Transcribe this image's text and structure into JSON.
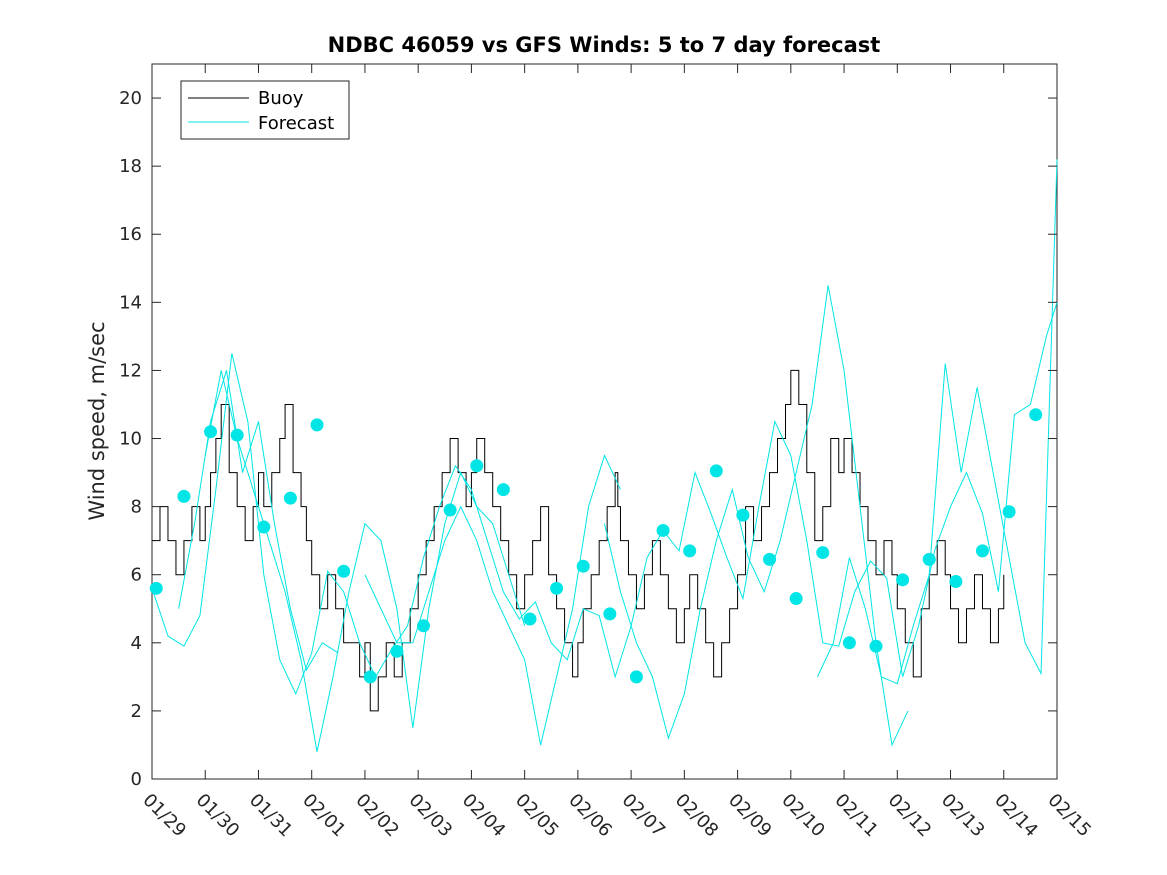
{
  "chart_data": {
    "type": "line",
    "title": "NDBC 46059 vs GFS Winds: 5 to 7 day forecast",
    "xlabel": "",
    "ylabel": "Wind speed, m/sec",
    "xlim": [
      0,
      17
    ],
    "ylim": [
      0,
      21
    ],
    "yticks": [
      0,
      2,
      4,
      6,
      8,
      10,
      12,
      14,
      16,
      18,
      20
    ],
    "xticks": [
      0,
      1,
      2,
      3,
      4,
      5,
      6,
      7,
      8,
      9,
      10,
      11,
      12,
      13,
      14,
      15,
      16,
      17
    ],
    "xtick_labels": [
      "01/29",
      "01/30",
      "01/31",
      "02/01",
      "02/02",
      "02/03",
      "02/04",
      "02/05",
      "02/06",
      "02/07",
      "02/08",
      "02/09",
      "02/10",
      "02/11",
      "02/12",
      "02/13",
      "02/14",
      "02/15"
    ],
    "x_unit": "days since 01/29",
    "legend": {
      "placement": "top-left",
      "entries": [
        {
          "name": "Buoy",
          "color": "#000000"
        },
        {
          "name": "Forecast",
          "color": "#00e5e5"
        }
      ]
    },
    "colors": {
      "buoy": "#000000",
      "forecast": "#00e5e5",
      "marker": "#00e5e5"
    },
    "series": [
      {
        "name": "Buoy",
        "style": "step",
        "x": [
          0,
          0.15,
          0.3,
          0.45,
          0.6,
          0.75,
          0.9,
          1.0,
          1.1,
          1.2,
          1.3,
          1.45,
          1.6,
          1.75,
          1.9,
          2.0,
          2.1,
          2.25,
          2.4,
          2.5,
          2.65,
          2.8,
          2.9,
          3.0,
          3.15,
          3.3,
          3.45,
          3.6,
          3.75,
          3.9,
          4.0,
          4.1,
          4.25,
          4.4,
          4.55,
          4.7,
          4.85,
          5.0,
          5.15,
          5.3,
          5.45,
          5.6,
          5.75,
          5.9,
          6.0,
          6.1,
          6.25,
          6.4,
          6.55,
          6.7,
          6.85,
          7.0,
          7.15,
          7.3,
          7.45,
          7.6,
          7.75,
          7.9,
          8.0,
          8.1,
          8.25,
          8.4,
          8.55,
          8.7,
          8.75,
          8.8,
          8.95,
          9.1,
          9.25,
          9.4,
          9.55,
          9.7,
          9.85,
          10.0,
          10.1,
          10.25,
          10.4,
          10.55,
          10.7,
          10.85,
          11.0,
          11.15,
          11.3,
          11.45,
          11.6,
          11.75,
          11.9,
          12.0,
          12.15,
          12.3,
          12.45,
          12.6,
          12.75,
          12.9,
          13.0,
          13.15,
          13.3,
          13.45,
          13.6,
          13.75,
          13.9,
          14.0,
          14.15,
          14.3,
          14.45,
          14.6,
          14.75,
          14.9,
          15.0,
          15.15,
          15.3,
          15.45,
          15.6,
          15.75,
          15.9,
          16.0
        ],
        "values": [
          7,
          8,
          7,
          6,
          7,
          8,
          7,
          8,
          9,
          10,
          11,
          9,
          8,
          7,
          8,
          9,
          8,
          9,
          10,
          11,
          9,
          8,
          7,
          6,
          5,
          6,
          5,
          4,
          4,
          3,
          4,
          2,
          3,
          4,
          3,
          4,
          5,
          6,
          7,
          8,
          9,
          10,
          9,
          8,
          9,
          10,
          9,
          8,
          7,
          6,
          5,
          6,
          7,
          8,
          6,
          5,
          4,
          3,
          4,
          5,
          6,
          7,
          8,
          9,
          8,
          7,
          6,
          5,
          6,
          7,
          6,
          5,
          4,
          5,
          6,
          5,
          4,
          3,
          4,
          5,
          6,
          8,
          7,
          8,
          9,
          10,
          11,
          12,
          11,
          9,
          7,
          8,
          10,
          9,
          10,
          9,
          8,
          7,
          6,
          7,
          6,
          5,
          4,
          3,
          5,
          6,
          7,
          6,
          5,
          4,
          5,
          6,
          5,
          4,
          5,
          6
        ]
      },
      {
        "name": "Forecast",
        "style": "line",
        "x": [
          0,
          0.3,
          0.6,
          0.9,
          1.2,
          1.5,
          1.8,
          2.1,
          2.4,
          2.7,
          3.0,
          3.3,
          3.6,
          3.9,
          4.2,
          4.5,
          4.8,
          5.1,
          5.4,
          5.7,
          6.0,
          6.3,
          6.6,
          6.9,
          7.2,
          7.5,
          7.8,
          8.1,
          8.4,
          8.7,
          9.0,
          9.3,
          9.6,
          9.9,
          10.2,
          10.5,
          10.8,
          11.1,
          11.4,
          11.7,
          12.0,
          12.3,
          12.6,
          12.9,
          13.2,
          13.5,
          13.8,
          14.1,
          14.4,
          14.7,
          15.0,
          15.3,
          15.6,
          15.9,
          16.2,
          16.5,
          16.8,
          17.0
        ],
        "values": [
          5.6,
          4.2,
          3.9,
          4.8,
          8.5,
          12.5,
          10.5,
          6.0,
          3.5,
          2.5,
          3.7,
          6.1,
          5.5,
          4.0,
          3.0,
          3.8,
          4.5,
          6.5,
          8.0,
          9.2,
          8.5,
          7.0,
          5.5,
          4.7,
          5.2,
          4.0,
          3.5,
          5.0,
          4.8,
          3.0,
          4.5,
          6.5,
          7.3,
          6.7,
          9.0,
          7.8,
          6.5,
          5.3,
          8.0,
          10.5,
          9.5,
          7.0,
          4.0,
          3.9,
          5.5,
          6.4,
          5.9,
          3.0,
          4.5,
          6.7,
          8.0,
          9.0,
          7.8,
          5.5,
          10.7,
          11.0,
          13.0,
          14.0
        ]
      },
      {
        "name": "Forecast",
        "style": "line",
        "x": [
          0.5,
          0.8,
          1.1,
          1.4,
          1.7,
          2.0,
          2.3,
          2.6,
          2.9,
          3.2,
          3.5
        ],
        "values": [
          5.0,
          7.5,
          10.5,
          12.0,
          9.0,
          10.5,
          7.5,
          5.0,
          3.2,
          4.0,
          3.7
        ]
      },
      {
        "name": "Forecast",
        "style": "line",
        "x": [
          1.0,
          1.3,
          1.6,
          1.9,
          2.2,
          2.5,
          2.8,
          3.1,
          3.4,
          3.7,
          4.0,
          4.3,
          4.6,
          4.9,
          5.2,
          5.5,
          5.8,
          6.1,
          6.4,
          6.7,
          7.0
        ],
        "values": [
          9.5,
          12.0,
          10.0,
          8.5,
          7.0,
          5.5,
          3.5,
          0.8,
          3.0,
          5.5,
          7.5,
          7.0,
          5.0,
          1.5,
          5.0,
          7.5,
          9.0,
          8.0,
          7.5,
          6.0,
          4.5
        ]
      },
      {
        "name": "Forecast",
        "style": "line",
        "x": [
          4.0,
          4.3,
          4.6,
          4.9,
          5.2,
          5.5,
          5.8,
          6.1,
          6.4,
          6.7,
          7.0,
          7.3,
          7.6,
          7.9,
          8.2,
          8.5,
          8.8
        ],
        "values": [
          6.0,
          5.0,
          4.0,
          4.0,
          5.5,
          7.0,
          8.0,
          7.0,
          5.5,
          4.5,
          3.5,
          1.0,
          3.0,
          5.0,
          8.0,
          9.5,
          8.5
        ]
      },
      {
        "name": "Forecast",
        "style": "line",
        "x": [
          8.5,
          8.8,
          9.1,
          9.4,
          9.7,
          10.0,
          10.3,
          10.6,
          10.9,
          11.2,
          11.5,
          11.8,
          12.1,
          12.4,
          12.7,
          13.0,
          13.3,
          13.6,
          13.9,
          14.2
        ],
        "values": [
          7.5,
          5.5,
          4.0,
          3.0,
          1.2,
          2.5,
          5.0,
          7.0,
          8.5,
          6.5,
          5.5,
          7.0,
          9.0,
          11.0,
          14.5,
          12.0,
          8.0,
          4.0,
          1.0,
          2.0
        ]
      },
      {
        "name": "Forecast",
        "style": "line",
        "x": [
          12.5,
          12.8,
          13.1,
          13.4,
          13.7,
          14.0,
          14.3,
          14.6,
          14.9,
          15.2,
          15.5,
          15.8,
          16.1,
          16.4,
          16.7,
          17.0
        ],
        "values": [
          3.0,
          4.0,
          6.5,
          5.0,
          3.0,
          2.8,
          4.5,
          6.0,
          12.2,
          9.0,
          11.5,
          9.0,
          6.5,
          4.0,
          3.1,
          18.2
        ]
      }
    ],
    "markers": {
      "name": "Forecast points",
      "x": [
        0.08,
        0.6,
        1.1,
        1.6,
        2.1,
        2.6,
        3.1,
        3.6,
        4.1,
        4.6,
        5.1,
        5.6,
        6.1,
        6.6,
        7.1,
        7.6,
        8.1,
        8.6,
        9.1,
        9.6,
        10.1,
        10.6,
        11.1,
        11.6,
        12.1,
        12.6,
        13.1,
        13.6,
        14.1,
        14.6,
        15.1,
        15.6,
        16.1,
        16.6
      ],
      "values": [
        5.6,
        8.3,
        10.2,
        10.1,
        7.4,
        8.25,
        10.4,
        6.1,
        3.0,
        3.75,
        4.5,
        7.9,
        9.2,
        8.5,
        4.7,
        5.6,
        6.25,
        4.85,
        3.0,
        7.3,
        6.7,
        9.05,
        7.75,
        6.45,
        5.3,
        6.65,
        4.0,
        3.9,
        5.85,
        6.45,
        5.8,
        6.7,
        7.85,
        10.7
      ]
    }
  }
}
